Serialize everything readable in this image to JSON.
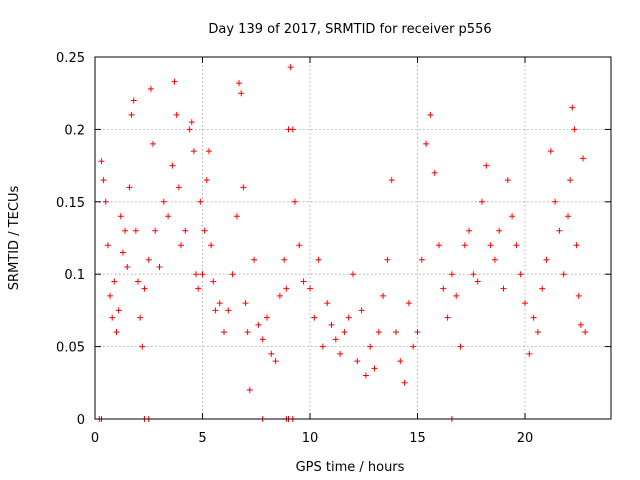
{
  "chart_data": {
    "type": "scatter",
    "title": "Day 139 of 2017, SRMTID for receiver p556",
    "xlabel": "GPS time / hours",
    "ylabel": "SRMTID / TECUs",
    "xlim": [
      0,
      24
    ],
    "ylim": [
      0,
      0.25
    ],
    "xticks": [
      0,
      5,
      10,
      15,
      20
    ],
    "xtick_labels": [
      "0",
      "5",
      "10",
      "15",
      "20"
    ],
    "yticks": [
      0,
      0.05,
      0.1,
      0.15,
      0.2,
      0.25
    ],
    "ytick_labels": [
      "0",
      "0.05",
      "0.1",
      "0.15",
      "0.2",
      "0.25"
    ],
    "grid": true,
    "marker": "+",
    "color": "#ff0000",
    "series": [
      {
        "name": "SRMTID",
        "points": [
          [
            0.2,
            0.0
          ],
          [
            0.3,
            0.0
          ],
          [
            2.3,
            0.0
          ],
          [
            2.5,
            0.0
          ],
          [
            7.8,
            0.0
          ],
          [
            8.9,
            0.0
          ],
          [
            9.0,
            0.0
          ],
          [
            9.2,
            0.0
          ],
          [
            16.6,
            0.0
          ],
          [
            0.3,
            0.178
          ],
          [
            0.4,
            0.165
          ],
          [
            0.5,
            0.15
          ],
          [
            0.6,
            0.12
          ],
          [
            0.7,
            0.085
          ],
          [
            0.8,
            0.07
          ],
          [
            0.9,
            0.095
          ],
          [
            1.0,
            0.06
          ],
          [
            1.1,
            0.075
          ],
          [
            1.2,
            0.14
          ],
          [
            1.3,
            0.115
          ],
          [
            1.4,
            0.13
          ],
          [
            1.5,
            0.105
          ],
          [
            1.6,
            0.16
          ],
          [
            1.7,
            0.21
          ],
          [
            1.8,
            0.22
          ],
          [
            1.9,
            0.13
          ],
          [
            2.0,
            0.095
          ],
          [
            2.1,
            0.07
          ],
          [
            2.2,
            0.05
          ],
          [
            2.3,
            0.09
          ],
          [
            2.5,
            0.11
          ],
          [
            2.6,
            0.228
          ],
          [
            2.7,
            0.19
          ],
          [
            2.8,
            0.13
          ],
          [
            3.0,
            0.105
          ],
          [
            3.2,
            0.15
          ],
          [
            3.4,
            0.14
          ],
          [
            3.6,
            0.175
          ],
          [
            3.7,
            0.233
          ],
          [
            3.8,
            0.21
          ],
          [
            3.9,
            0.16
          ],
          [
            4.0,
            0.12
          ],
          [
            4.2,
            0.13
          ],
          [
            4.4,
            0.2
          ],
          [
            4.5,
            0.205
          ],
          [
            4.6,
            0.185
          ],
          [
            4.7,
            0.1
          ],
          [
            4.8,
            0.09
          ],
          [
            4.9,
            0.15
          ],
          [
            5.0,
            0.1
          ],
          [
            5.1,
            0.13
          ],
          [
            5.2,
            0.165
          ],
          [
            5.3,
            0.185
          ],
          [
            5.4,
            0.12
          ],
          [
            5.5,
            0.095
          ],
          [
            5.6,
            0.075
          ],
          [
            5.8,
            0.08
          ],
          [
            6.0,
            0.06
          ],
          [
            6.2,
            0.075
          ],
          [
            6.4,
            0.1
          ],
          [
            6.6,
            0.14
          ],
          [
            6.7,
            0.232
          ],
          [
            6.8,
            0.225
          ],
          [
            6.9,
            0.16
          ],
          [
            7.0,
            0.08
          ],
          [
            7.1,
            0.06
          ],
          [
            7.2,
            0.02
          ],
          [
            7.4,
            0.11
          ],
          [
            7.6,
            0.065
          ],
          [
            7.8,
            0.055
          ],
          [
            8.0,
            0.07
          ],
          [
            8.2,
            0.045
          ],
          [
            8.4,
            0.04
          ],
          [
            8.6,
            0.085
          ],
          [
            8.8,
            0.11
          ],
          [
            8.9,
            0.09
          ],
          [
            9.0,
            0.2
          ],
          [
            9.1,
            0.243
          ],
          [
            9.2,
            0.2
          ],
          [
            9.3,
            0.15
          ],
          [
            9.5,
            0.12
          ],
          [
            9.7,
            0.095
          ],
          [
            10.0,
            0.09
          ],
          [
            10.2,
            0.07
          ],
          [
            10.4,
            0.11
          ],
          [
            10.6,
            0.05
          ],
          [
            10.8,
            0.08
          ],
          [
            11.0,
            0.065
          ],
          [
            11.2,
            0.055
          ],
          [
            11.4,
            0.045
          ],
          [
            11.6,
            0.06
          ],
          [
            11.8,
            0.07
          ],
          [
            12.0,
            0.1
          ],
          [
            12.2,
            0.04
          ],
          [
            12.4,
            0.075
          ],
          [
            12.6,
            0.03
          ],
          [
            12.8,
            0.05
          ],
          [
            13.0,
            0.035
          ],
          [
            13.2,
            0.06
          ],
          [
            13.4,
            0.085
          ],
          [
            13.6,
            0.11
          ],
          [
            13.8,
            0.165
          ],
          [
            14.0,
            0.06
          ],
          [
            14.2,
            0.04
          ],
          [
            14.4,
            0.025
          ],
          [
            14.6,
            0.08
          ],
          [
            14.8,
            0.05
          ],
          [
            15.0,
            0.06
          ],
          [
            15.2,
            0.11
          ],
          [
            15.4,
            0.19
          ],
          [
            15.6,
            0.21
          ],
          [
            15.8,
            0.17
          ],
          [
            16.0,
            0.12
          ],
          [
            16.2,
            0.09
          ],
          [
            16.4,
            0.07
          ],
          [
            16.6,
            0.1
          ],
          [
            16.8,
            0.085
          ],
          [
            17.0,
            0.05
          ],
          [
            17.2,
            0.12
          ],
          [
            17.4,
            0.13
          ],
          [
            17.6,
            0.1
          ],
          [
            17.8,
            0.095
          ],
          [
            18.0,
            0.15
          ],
          [
            18.2,
            0.175
          ],
          [
            18.4,
            0.12
          ],
          [
            18.6,
            0.11
          ],
          [
            18.8,
            0.13
          ],
          [
            19.0,
            0.09
          ],
          [
            19.2,
            0.165
          ],
          [
            19.4,
            0.14
          ],
          [
            19.6,
            0.12
          ],
          [
            19.8,
            0.1
          ],
          [
            20.0,
            0.08
          ],
          [
            20.2,
            0.045
          ],
          [
            20.4,
            0.07
          ],
          [
            20.6,
            0.06
          ],
          [
            20.8,
            0.09
          ],
          [
            21.0,
            0.11
          ],
          [
            21.2,
            0.185
          ],
          [
            21.4,
            0.15
          ],
          [
            21.6,
            0.13
          ],
          [
            21.8,
            0.1
          ],
          [
            22.0,
            0.14
          ],
          [
            22.1,
            0.165
          ],
          [
            22.2,
            0.215
          ],
          [
            22.3,
            0.2
          ],
          [
            22.4,
            0.12
          ],
          [
            22.5,
            0.085
          ],
          [
            22.6,
            0.065
          ],
          [
            22.7,
            0.18
          ],
          [
            22.8,
            0.06
          ]
        ]
      }
    ]
  }
}
